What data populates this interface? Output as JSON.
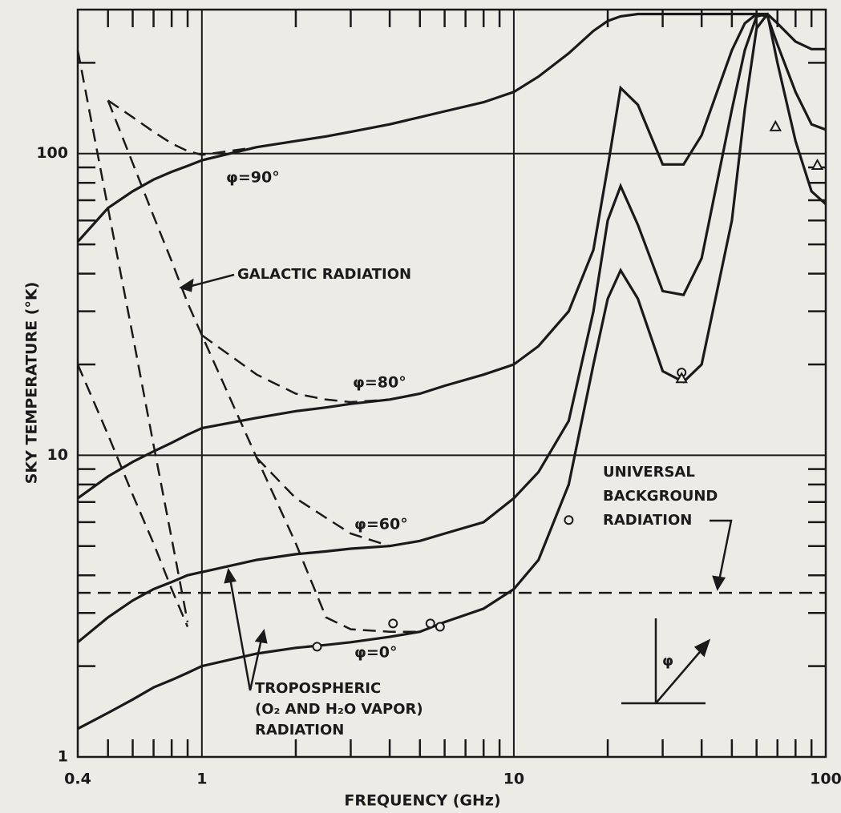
{
  "chart_data": {
    "type": "line",
    "x_label": "FREQUENCY (GHz)",
    "y_label": "SKY TEMPERATURE (°K)",
    "log_x": true,
    "log_y": true,
    "grid": true,
    "xlim": [
      0.4,
      100
    ],
    "ylim": [
      1,
      300
    ],
    "xticks": [
      0.4,
      1,
      10,
      100
    ],
    "yticks": [
      1,
      10,
      100
    ],
    "xminorticks": [
      0.5,
      0.6,
      0.7,
      0.8,
      0.9,
      2,
      3,
      4,
      5,
      6,
      7,
      8,
      9,
      20,
      30,
      40,
      50,
      60,
      70,
      80,
      90
    ],
    "yminorticks": [
      2,
      3,
      4,
      5,
      6,
      7,
      8,
      9,
      20,
      30,
      40,
      50,
      60,
      70,
      80,
      90,
      200
    ],
    "x": [
      0.4,
      0.5,
      0.6,
      0.7,
      0.8,
      0.9,
      1,
      1.5,
      2,
      2.5,
      3,
      4,
      5,
      6,
      8,
      10,
      12,
      15,
      18,
      20,
      22,
      25,
      30,
      35,
      40,
      50,
      55,
      60,
      65,
      70,
      80,
      90,
      100
    ],
    "series": [
      {
        "name": "φ=90°",
        "color": "#1a1a1a",
        "dash": false,
        "values": [
          51,
          66,
          75,
          82,
          87,
          91,
          95,
          105,
          110,
          114,
          118,
          125,
          132,
          138,
          148,
          160,
          180,
          215,
          255,
          275,
          285,
          290,
          290,
          290,
          290,
          290,
          290,
          290,
          290,
          270,
          235,
          222,
          222
        ]
      },
      {
        "name": "φ=80°",
        "color": "#1a1a1a",
        "dash": false,
        "values": [
          7.2,
          8.5,
          9.5,
          10.3,
          11,
          11.7,
          12.3,
          13.3,
          14,
          14.4,
          14.8,
          15.3,
          16,
          17,
          18.5,
          20,
          23,
          30,
          48,
          90,
          165,
          145,
          92,
          92,
          115,
          220,
          270,
          290,
          285,
          230,
          160,
          125,
          120
        ]
      },
      {
        "name": "φ=60°",
        "color": "#1a1a1a",
        "dash": false,
        "values": [
          2.4,
          2.9,
          3.3,
          3.6,
          3.8,
          4.0,
          4.1,
          4.5,
          4.7,
          4.8,
          4.9,
          5.0,
          5.2,
          5.5,
          6.0,
          7.2,
          8.8,
          13,
          30,
          60,
          78,
          58,
          35,
          34,
          45,
          140,
          220,
          285,
          290,
          200,
          110,
          75,
          68
        ]
      },
      {
        "name": "φ=0°",
        "color": "#1a1a1a",
        "dash": false,
        "values": [
          1.24,
          1.4,
          1.55,
          1.7,
          1.8,
          1.9,
          2.0,
          2.2,
          2.3,
          2.35,
          2.4,
          2.5,
          2.6,
          2.8,
          3.1,
          3.6,
          4.5,
          8,
          20,
          33,
          41,
          33,
          19,
          17.5,
          20,
          60,
          140,
          260,
          290,
          null,
          null,
          null,
          null
        ]
      },
      {
        "color": "#1a1a1a",
        "dash": true,
        "values": [
          220,
          66,
          25,
          10.8,
          5.3,
          2.8,
          null,
          null,
          null,
          null,
          null,
          null,
          null,
          null,
          null,
          null,
          null,
          null,
          null,
          null,
          null,
          null,
          null,
          null,
          null,
          null,
          null,
          null,
          null,
          null,
          null,
          null,
          null
        ]
      },
      {
        "color": "#1a1a1a",
        "dash": true,
        "values": [
          null,
          150,
          93,
          62,
          44,
          32,
          25,
          9.8,
          5.1,
          2.9,
          2.65,
          2.6,
          2.6,
          null,
          null,
          null,
          null,
          null,
          null,
          null,
          null,
          null,
          null,
          null,
          null,
          null,
          null,
          null,
          null,
          null,
          null,
          null,
          null
        ]
      },
      {
        "color": "#1a1a1a",
        "dash": true,
        "values": [
          20,
          11.7,
          7.4,
          5.1,
          3.6,
          2.7,
          null,
          null,
          null,
          null,
          null,
          null,
          null,
          null,
          null,
          null,
          null,
          null,
          null,
          null,
          null,
          null,
          null,
          null,
          null,
          null,
          null,
          null,
          null,
          null,
          null,
          null,
          null
        ]
      },
      {
        "color": "#1a1a1a",
        "dash": true,
        "values": [
          null,
          150,
          132,
          118,
          108,
          102,
          99,
          105,
          null,
          null,
          null,
          null,
          null,
          null,
          null,
          null,
          null,
          null,
          null,
          null,
          null,
          null,
          null,
          null,
          null,
          null,
          null,
          null,
          null,
          null,
          null,
          null,
          null
        ]
      },
      {
        "color": "#1a1a1a",
        "dash": true,
        "values": [
          null,
          null,
          null,
          null,
          null,
          null,
          25,
          18.5,
          16,
          15.3,
          15,
          15.3,
          null,
          null,
          null,
          null,
          null,
          null,
          null,
          null,
          null,
          null,
          null,
          null,
          null,
          null,
          null,
          null,
          null,
          null,
          null,
          null,
          null
        ]
      },
      {
        "color": "#1a1a1a",
        "dash": true,
        "values": [
          null,
          null,
          null,
          null,
          null,
          null,
          null,
          9.8,
          7.2,
          6.2,
          5.5,
          5.0,
          null,
          null,
          null,
          null,
          null,
          null,
          null,
          null,
          null,
          null,
          null,
          null,
          null,
          null,
          null,
          null,
          null,
          null,
          null,
          null,
          null
        ]
      },
      {
        "color": "#1a1a1a",
        "dash": true,
        "values": [
          3.5,
          3.5,
          3.5,
          3.5,
          3.5,
          3.5,
          3.5,
          3.5,
          3.5,
          3.5,
          3.5,
          3.5,
          3.5,
          3.5,
          3.5,
          3.5,
          3.5,
          3.5,
          3.5,
          3.5,
          3.5,
          3.5,
          3.5,
          3.5,
          3.5,
          3.5,
          3.5,
          3.5,
          3.5,
          3.5,
          3.5,
          3.5,
          3.5
        ]
      }
    ],
    "markers": [
      {
        "shape": "circle",
        "x": [
          2.34,
          4.1,
          5.4,
          5.8,
          15,
          34.5
        ],
        "y": [
          2.32,
          2.77,
          2.77,
          2.7,
          6.1,
          18.8
        ]
      },
      {
        "shape": "triangle",
        "x": [
          34.5,
          69,
          94
        ],
        "y": [
          18,
          123,
          91.6
        ]
      }
    ],
    "annotations": [
      "GALACTIC RADIATION",
      "UNIVERSAL",
      "BACKGROUND",
      "RADIATION",
      "TROPOSPHERIC",
      "(O₂ AND H₂O VAPOR)",
      "RADIATION",
      "φ"
    ]
  }
}
